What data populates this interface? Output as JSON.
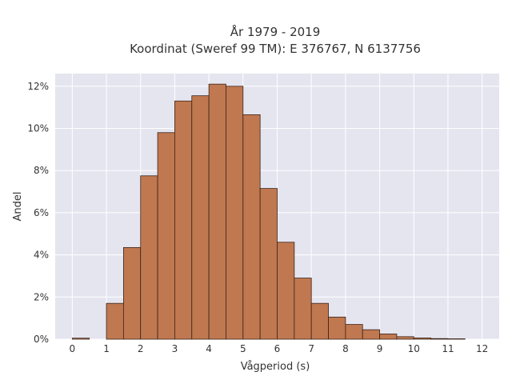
{
  "chart_data": {
    "type": "bar",
    "title": "År 1979 - 2019",
    "subtitle": "Koordinat (Sweref 99 TM): E 376767, N 6137756",
    "xlabel": "Vågperiod (s)",
    "ylabel": "Andel",
    "x_ticks": [
      "0",
      "1",
      "2",
      "3",
      "4",
      "5",
      "6",
      "7",
      "8",
      "9",
      "10",
      "11",
      "12"
    ],
    "y_ticks": [
      "0%",
      "2%",
      "4%",
      "6%",
      "8%",
      "10%",
      "12%"
    ],
    "xlim": [
      -0.5,
      12.5
    ],
    "ylim": [
      0,
      12.6
    ],
    "bin_width": 0.5,
    "bins": [
      {
        "start": 0.0,
        "value": 0.05
      },
      {
        "start": 1.0,
        "value": 1.7
      },
      {
        "start": 1.5,
        "value": 4.35
      },
      {
        "start": 2.0,
        "value": 7.75
      },
      {
        "start": 2.5,
        "value": 9.8
      },
      {
        "start": 3.0,
        "value": 11.3
      },
      {
        "start": 3.5,
        "value": 11.55
      },
      {
        "start": 4.0,
        "value": 12.1
      },
      {
        "start": 4.5,
        "value": 12.0
      },
      {
        "start": 5.0,
        "value": 10.65
      },
      {
        "start": 5.5,
        "value": 7.15
      },
      {
        "start": 6.0,
        "value": 4.6
      },
      {
        "start": 6.5,
        "value": 2.9
      },
      {
        "start": 7.0,
        "value": 1.7
      },
      {
        "start": 7.5,
        "value": 1.05
      },
      {
        "start": 8.0,
        "value": 0.7
      },
      {
        "start": 8.5,
        "value": 0.45
      },
      {
        "start": 9.0,
        "value": 0.25
      },
      {
        "start": 9.5,
        "value": 0.12
      },
      {
        "start": 10.0,
        "value": 0.06
      },
      {
        "start": 10.5,
        "value": 0.03
      },
      {
        "start": 11.0,
        "value": 0.02
      }
    ],
    "grid": true,
    "legend": "none",
    "colors": {
      "bar_fill": "#c07850",
      "bar_edge": "#3a2418",
      "plot_background": "#e5e5f0",
      "grid": "#ffffff"
    }
  }
}
